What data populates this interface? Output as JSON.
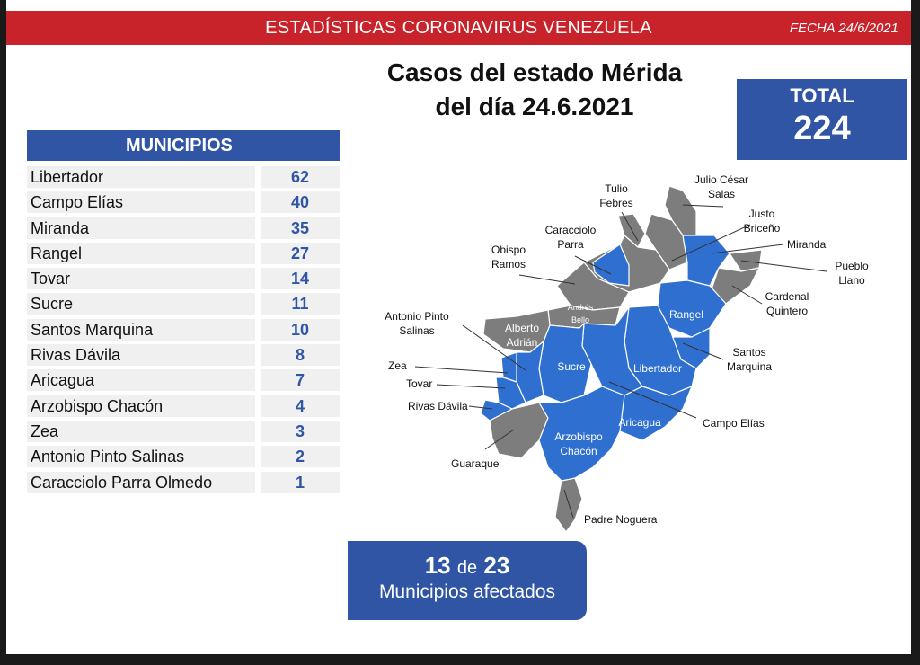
{
  "banner": {
    "title": "ESTADÍSTICAS CORONAVIRUS VENEZUELA",
    "date": "FECHA 24/6/2021"
  },
  "title": {
    "line1": "Casos del estado Mérida",
    "line2": "del día 24.6.2021"
  },
  "total": {
    "label": "TOTAL",
    "value": "224"
  },
  "table": {
    "header": "MUNICIPIOS",
    "rows": [
      {
        "name": "Libertador",
        "value": "62"
      },
      {
        "name": "Campo Elías",
        "value": "40"
      },
      {
        "name": "Miranda",
        "value": "35"
      },
      {
        "name": "Rangel",
        "value": "27"
      },
      {
        "name": "Tovar",
        "value": "14"
      },
      {
        "name": "Sucre",
        "value": "11"
      },
      {
        "name": "Santos Marquina",
        "value": "10"
      },
      {
        "name": "Rivas Dávila",
        "value": "8"
      },
      {
        "name": "Aricagua",
        "value": "7"
      },
      {
        "name": "Arzobispo Chacón",
        "value": "4"
      },
      {
        "name": "Zea",
        "value": "3"
      },
      {
        "name": "Antonio Pinto Salinas",
        "value": "2"
      },
      {
        "name": "Caracciolo Parra Olmedo",
        "value": "1"
      }
    ]
  },
  "map": {
    "affected_color": "#2f6fd0",
    "unaffected_color": "#7d7d7d",
    "labels": {
      "tulio_1": "Tulio",
      "tulio_2": "Febres",
      "julio_1": "Julio César",
      "julio_2": "Salas",
      "justo_1": "Justo",
      "justo_2": "Briceño",
      "caracciolo_1": "Caracciolo",
      "caracciolo_2": "Parra",
      "miranda": "Miranda",
      "obispo_1": "Obispo",
      "obispo_2": "Ramos",
      "pueblo_1": "Pueblo",
      "pueblo_2": "Llano",
      "cardenal_1": "Cardenal",
      "cardenal_2": "Quintero",
      "andres_1": "Andrés",
      "andres_2": "Bello",
      "antonio_1": "Antonio Pinto",
      "antonio_2": "Salinas",
      "alberto_1": "Alberto",
      "alberto_2": "Adrián",
      "rangel": "Rangel",
      "santos_1": "Santos",
      "santos_2": "Marquina",
      "zea": "Zea",
      "tovar": "Tovar",
      "sucre": "Sucre",
      "libertador": "Libertador",
      "rivas": "Rivas Dávila",
      "campo": "Campo Elías",
      "aricagua": "Aricagua",
      "arzobispo_1": "Arzobispo",
      "arzobispo_2": "Chacón",
      "guaraque": "Guaraque",
      "padre": "Padre Noguera"
    }
  },
  "affected": {
    "count": "13",
    "connector": "de",
    "total": "23",
    "label": "Municipios afectados"
  }
}
